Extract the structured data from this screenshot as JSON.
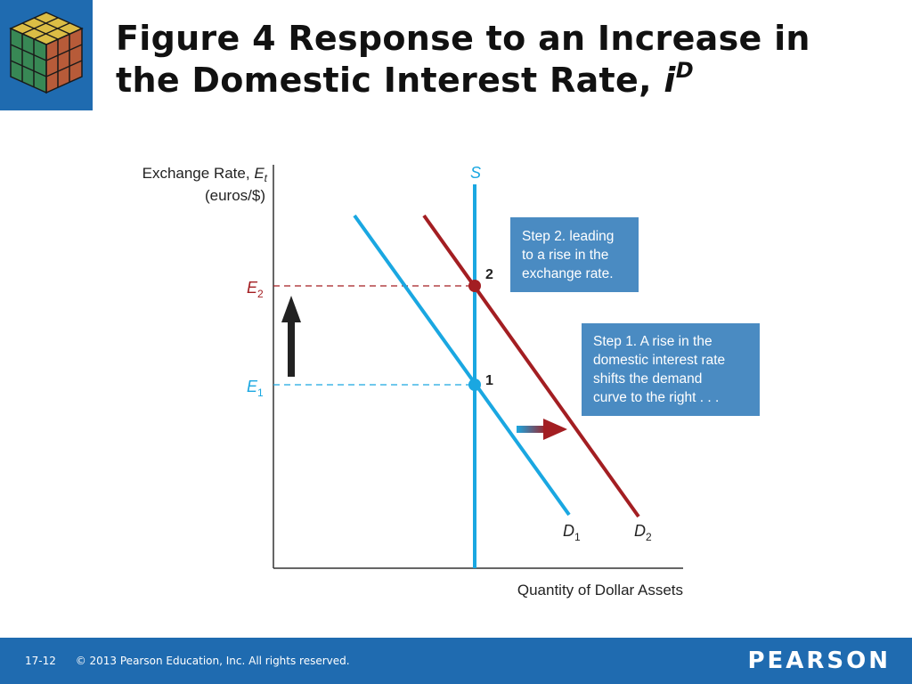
{
  "title": {
    "line1": "Figure 4  Response to an Increase in",
    "line2_prefix": "the Domestic Interest Rate, ",
    "line2_var": "i",
    "line2_sup": "D"
  },
  "diagram": {
    "y_axis_label_line1": "Exchange Rate, ",
    "y_axis_label_var": "E",
    "y_axis_label_sub": "t",
    "y_axis_label_line2": "(euros/$)",
    "x_axis_label": "Quantity of Dollar Assets",
    "supply_label": "S",
    "d1_label": "D",
    "d1_sub": "1",
    "d2_label": "D",
    "d2_sub": "2",
    "e1_label": "E",
    "e1_sub": "1",
    "e2_label": "E",
    "e2_sub": "2",
    "point1_label": "1",
    "point2_label": "2",
    "step1_lines": [
      "Step 1. A rise in the",
      "domestic interest rate",
      "shifts the demand",
      "curve to the right . . ."
    ],
    "step2_lines": [
      "Step 2. leading",
      "to a rise in the",
      "exchange rate."
    ],
    "colors": {
      "curve_blue": "#1aa7e1",
      "curve_red": "#a31e22",
      "box_blue": "#4a8bc2",
      "arrow_dark": "#222222"
    }
  },
  "footer": {
    "slide_number": "17-12",
    "copyright": "© 2013 Pearson Education, Inc. All rights reserved.",
    "brand": "PEARSON"
  }
}
